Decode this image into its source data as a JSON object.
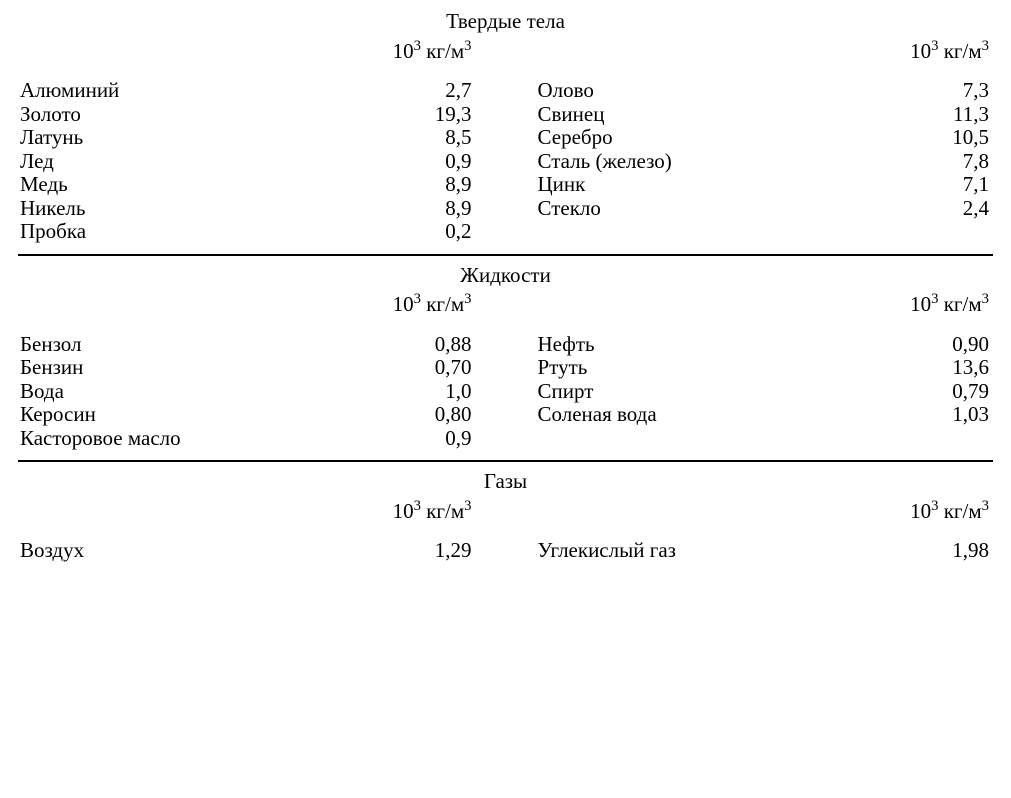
{
  "unit_label_html": "10<sup>3</sup> кг/м<sup>3</sup>",
  "sections": [
    {
      "title": "Твердые тела",
      "left": [
        {
          "name": "Алюминий",
          "val": "2,7"
        },
        {
          "name": "Золото",
          "val": "19,3"
        },
        {
          "name": "Латунь",
          "val": "8,5"
        },
        {
          "name": "Лед",
          "val": "0,9"
        },
        {
          "name": "Медь",
          "val": "8,9"
        },
        {
          "name": "Никель",
          "val": "8,9"
        },
        {
          "name": "Пробка",
          "val": "0,2"
        }
      ],
      "right": [
        {
          "name": "Олово",
          "val": "7,3"
        },
        {
          "name": "Свинец",
          "val": "11,3"
        },
        {
          "name": "Серебро",
          "val": "10,5"
        },
        {
          "name": "Сталь (железо)",
          "val": "7,8"
        },
        {
          "name": "Цинк",
          "val": "7,1"
        },
        {
          "name": "Стекло",
          "val": "2,4"
        }
      ]
    },
    {
      "title": "Жидкости",
      "left": [
        {
          "name": "Бензол",
          "val": "0,88"
        },
        {
          "name": "Бензин",
          "val": "0,70"
        },
        {
          "name": "Вода",
          "val": "1,0"
        },
        {
          "name": "Керосин",
          "val": "0,80"
        },
        {
          "name": "Касторовое масло",
          "val": "0,9"
        }
      ],
      "right": [
        {
          "name": "Нефть",
          "val": "0,90"
        },
        {
          "name": "Ртуть",
          "val": "13,6"
        },
        {
          "name": "Спирт",
          "val": "0,79"
        },
        {
          "name": "Соленая вода",
          "val": "1,03"
        }
      ]
    },
    {
      "title": "Газы",
      "left": [
        {
          "name": "Воздух",
          "val": "1,29"
        }
      ],
      "right": [
        {
          "name": "Углекислый газ",
          "val": "1,98"
        }
      ]
    }
  ]
}
